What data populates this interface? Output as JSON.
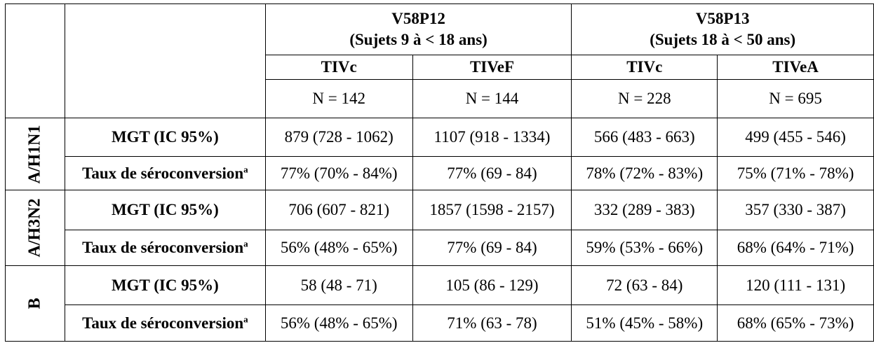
{
  "studies": [
    {
      "id": "V58P12",
      "title": "V58P12",
      "subtitle": "(Sujets 9 à < 18 ans)"
    },
    {
      "id": "V58P13",
      "title": "V58P13",
      "subtitle": "(Sujets 18 à < 50 ans)"
    }
  ],
  "vaccines": [
    "TIVc",
    "TIVeF",
    "TIVc",
    "TIVeA"
  ],
  "counts": [
    "N = 142",
    "N = 144",
    "N = 228",
    "N = 695"
  ],
  "metrics": {
    "gmt": "MGT (IC 95%)",
    "seroconversion": "Taux de séroconversion",
    "footnote_marker": "a"
  },
  "strains": [
    {
      "name": "A/H1N1",
      "gmt": [
        "879 (728 - 1062)",
        "1107 (918 - 1334)",
        "566 (483 - 663)",
        "499 (455 - 546)"
      ],
      "seroconversion": [
        "77% (70% - 84%)",
        "77% (69 - 84)",
        "78% (72% - 83%)",
        "75% (71% - 78%)"
      ]
    },
    {
      "name": "A/H3N2",
      "gmt": [
        "706 (607 - 821)",
        "1857 (1598 - 2157)",
        "332 (289 - 383)",
        "357 (330 - 387)"
      ],
      "seroconversion": [
        "56% (48% - 65%)",
        "77% (69 - 84)",
        "59% (53% - 66%)",
        "68% (64% - 71%)"
      ]
    },
    {
      "name": "B",
      "gmt": [
        "58 (48 - 71)",
        "105 (86 - 129)",
        "72 (63 - 84)",
        "120 (111 - 131)"
      ],
      "seroconversion": [
        "56% (48% - 65%)",
        "71% (63 - 78)",
        "51% (45% - 58%)",
        "68% (65% - 73%)"
      ]
    }
  ]
}
